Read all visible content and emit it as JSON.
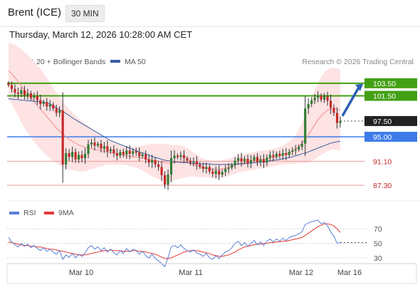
{
  "header": {
    "instrument": "Brent (ICE)",
    "timeframe": "30 MIN"
  },
  "timestamp": "Thursday, March 12, 2026 10:28:00 AM CET",
  "source": "Research © 2026 Trading Central",
  "colors": {
    "bollinger": "#f38a8a",
    "bollinger_fill": "#fde3e3",
    "ma50": "#3a5fa4",
    "candle_up": "#2e7d32",
    "candle_down": "#c62828",
    "resistance": "#43a014",
    "pivot": "#3d7be8",
    "support": "#ef9a9a",
    "current": "#222222",
    "arrow": "#2d5fb3",
    "rsi": "#5b7fd6",
    "rsi_ma": "#e53935"
  },
  "chart_data": [
    {
      "type": "candlestick",
      "legend": [
        {
          "label": "MA 20 + Bollinger Bands",
          "color": "#f38a8a"
        },
        {
          "label": "MA 50",
          "color": "#3a5fa4"
        }
      ],
      "x_ticks": [
        "Mar 10",
        "Mar 11",
        "Mar 12",
        "Mar 16"
      ],
      "ylim": [
        84.7,
        108.8
      ],
      "levels": [
        {
          "value": 103.5,
          "label": "103.50",
          "kind": "resistance"
        },
        {
          "value": 101.5,
          "label": "101.50",
          "kind": "resistance"
        },
        {
          "value": 97.5,
          "label": "97.50",
          "kind": "current"
        },
        {
          "value": 95.0,
          "label": "95.00",
          "kind": "pivot"
        },
        {
          "value": 91.1,
          "label": "91.10",
          "kind": "support"
        },
        {
          "value": 87.3,
          "label": "87.30",
          "kind": "support"
        }
      ],
      "target_arrow": {
        "from": 98.3,
        "to": 103.4
      },
      "close": [
        103.2,
        102.6,
        102.0,
        101.8,
        102.4,
        101.6,
        101.9,
        101.2,
        101.5,
        100.8,
        100.2,
        100.5,
        99.8,
        100.1,
        99.5,
        98.8,
        99.2,
        90.6,
        92.4,
        91.8,
        92.6,
        91.4,
        92.1,
        91.6,
        92.3,
        93.8,
        94.1,
        93.6,
        93.9,
        93.1,
        93.5,
        92.7,
        93.0,
        92.4,
        92.0,
        92.6,
        92.2,
        92.8,
        92.3,
        92.7,
        92.5,
        91.9,
        92.2,
        91.4,
        90.9,
        91.3,
        90.6,
        90.2,
        88.9,
        87.4,
        89.0,
        91.6,
        92.0,
        91.8,
        92.1,
        91.6,
        91.2,
        90.9,
        91.1,
        90.6,
        90.3,
        89.9,
        90.2,
        89.5,
        89.1,
        89.6,
        89.0,
        89.4,
        89.9,
        90.1,
        90.5,
        91.2,
        91.6,
        91.1,
        91.5,
        90.8,
        91.3,
        91.8,
        91.0,
        91.4,
        90.9,
        91.7,
        92.1,
        91.8,
        92.3,
        92.0,
        92.4,
        92.1,
        92.6,
        92.8,
        93.0,
        93.4,
        93.9,
        99.5,
        100.2,
        100.8,
        101.2,
        101.5,
        100.9,
        101.4,
        100.7,
        99.6,
        98.8,
        97.2,
        97.5
      ],
      "ma20": [
        105.5,
        105.0,
        104.4,
        103.8,
        103.1,
        102.4,
        101.8,
        101.2,
        100.6,
        100.0,
        99.4,
        98.8,
        98.2,
        97.6,
        97.0,
        96.4,
        95.9,
        95.4,
        95.0,
        94.6,
        94.3,
        94.0,
        93.7,
        93.5,
        93.3,
        93.2,
        93.1,
        93.0,
        92.9,
        92.8,
        92.7,
        92.6,
        92.5,
        92.4,
        92.3,
        92.2,
        92.1,
        92.0,
        91.9,
        91.8,
        91.8,
        91.7,
        91.6,
        91.5,
        91.4,
        91.3,
        91.2,
        91.1,
        91.0,
        90.9,
        90.8,
        90.8,
        90.9,
        91.0,
        91.0,
        91.0,
        90.9,
        90.8,
        90.6,
        90.4,
        90.2,
        90.1,
        90.0,
        89.9,
        89.8,
        89.8,
        89.8,
        89.9,
        90.0,
        90.1,
        90.3,
        90.5,
        90.7,
        90.8,
        90.9,
        91.0,
        91.1,
        91.2,
        91.3,
        91.4,
        91.4,
        91.5,
        91.6,
        91.7,
        91.8,
        92.0,
        92.1,
        92.3,
        92.5,
        92.7,
        93.0,
        93.5,
        94.0,
        94.6,
        95.3,
        96.1,
        96.9,
        97.7,
        98.3,
        98.8,
        99.2,
        99.4,
        99.5,
        99.4,
        99.2
      ],
      "bb_half_width": [
        4.5,
        4.8,
        5.2,
        5.5,
        5.8,
        6.0,
        6.2,
        6.3,
        6.4,
        6.4,
        6.4,
        6.3,
        6.2,
        6.0,
        5.8,
        5.6,
        5.4,
        5.2,
        5.0,
        4.8,
        4.6,
        4.4,
        4.2,
        4.0,
        3.8,
        3.5,
        3.2,
        3.0,
        2.7,
        2.5,
        2.2,
        2.0,
        1.9,
        1.8,
        1.7,
        1.6,
        1.5,
        1.5,
        1.5,
        1.6,
        1.7,
        1.8,
        2.0,
        2.2,
        2.4,
        2.6,
        2.7,
        2.8,
        2.9,
        3.0,
        3.0,
        2.9,
        2.8,
        2.7,
        2.6,
        2.5,
        2.3,
        2.1,
        1.9,
        1.8,
        1.6,
        1.5,
        1.4,
        1.4,
        1.4,
        1.4,
        1.4,
        1.4,
        1.4,
        1.4,
        1.4,
        1.4,
        1.4,
        1.4,
        1.4,
        1.4,
        1.4,
        1.4,
        1.4,
        1.4,
        1.4,
        1.4,
        1.4,
        1.4,
        1.4,
        1.4,
        1.5,
        1.6,
        1.8,
        2.0,
        2.3,
        2.7,
        3.2,
        3.8,
        4.4,
        5.0,
        5.5,
        5.9,
        6.2,
        6.4,
        6.5,
        6.5,
        6.5,
        6.5,
        6.4
      ],
      "ma50": [
        101.0,
        101.0,
        100.9,
        100.9,
        100.8,
        100.8,
        100.7,
        100.7,
        100.6,
        100.6,
        100.6,
        100.5,
        100.4,
        100.2,
        99.9,
        99.6,
        99.3,
        99.0,
        98.7,
        98.4,
        98.0,
        97.7,
        97.4,
        97.1,
        96.8,
        96.5,
        96.2,
        95.9,
        95.6,
        95.3,
        95.0,
        94.7,
        94.4,
        94.2,
        94.0,
        93.8,
        93.6,
        93.4,
        93.2,
        93.0,
        92.8,
        92.6,
        92.4,
        92.3,
        92.1,
        91.9,
        91.7,
        91.6,
        91.4,
        91.3,
        91.2,
        91.1,
        91.0,
        91.0,
        90.9,
        90.9,
        90.9,
        90.8,
        90.8,
        90.8,
        90.7,
        90.7,
        90.7,
        90.7,
        90.6,
        90.6,
        90.6,
        90.6,
        90.6,
        90.6,
        90.6,
        90.6,
        90.7,
        90.7,
        90.7,
        90.8,
        90.8,
        90.9,
        90.9,
        91.0,
        91.0,
        91.1,
        91.2,
        91.3,
        91.3,
        91.4,
        91.5,
        91.6,
        91.7,
        91.8,
        92.0,
        92.1,
        92.3,
        92.4,
        92.6,
        92.8,
        93.0,
        93.2,
        93.4,
        93.6,
        93.8,
        94.0,
        94.1,
        94.2,
        94.3
      ]
    },
    {
      "type": "line",
      "legend": [
        {
          "label": "RSI",
          "color": "#5b7fd6"
        },
        {
          "label": "9MA",
          "color": "#e53935"
        }
      ],
      "ylim": [
        22,
        85
      ],
      "y_ticks": [
        70,
        50,
        30
      ],
      "rsi": [
        58,
        52,
        48,
        45,
        50,
        46,
        49,
        44,
        47,
        43,
        40,
        44,
        39,
        42,
        38,
        35,
        40,
        28,
        34,
        31,
        36,
        30,
        35,
        32,
        37,
        44,
        47,
        42,
        45,
        40,
        44,
        38,
        42,
        37,
        34,
        40,
        36,
        43,
        38,
        42,
        40,
        35,
        39,
        33,
        30,
        35,
        29,
        26,
        22,
        18,
        30,
        45,
        47,
        44,
        48,
        43,
        40,
        38,
        41,
        37,
        35,
        32,
        36,
        30,
        28,
        33,
        29,
        34,
        38,
        40,
        44,
        50,
        53,
        47,
        51,
        46,
        50,
        54,
        48,
        52,
        47,
        53,
        56,
        52,
        56,
        53,
        57,
        54,
        58,
        60,
        61,
        63,
        66,
        76,
        78,
        80,
        81,
        82,
        77,
        79,
        74,
        66,
        60,
        50,
        51
      ],
      "ma": [
        52,
        51,
        50,
        49,
        48,
        47,
        47,
        46,
        46,
        45,
        45,
        44,
        43,
        42,
        42,
        41,
        40,
        39,
        38,
        37,
        36,
        35,
        34,
        34,
        34,
        35,
        36,
        37,
        38,
        39,
        40,
        40,
        41,
        40,
        40,
        40,
        39,
        39,
        39,
        40,
        40,
        39,
        39,
        38,
        37,
        36,
        35,
        33,
        31,
        29,
        29,
        30,
        32,
        34,
        36,
        38,
        39,
        40,
        40,
        40,
        39,
        38,
        37,
        36,
        34,
        33,
        32,
        32,
        33,
        34,
        36,
        38,
        41,
        43,
        45,
        46,
        47,
        48,
        49,
        49,
        50,
        50,
        51,
        51,
        52,
        52,
        53,
        53,
        54,
        55,
        56,
        57,
        58,
        61,
        64,
        67,
        70,
        73,
        75,
        77,
        77,
        76,
        74,
        70,
        65
      ]
    }
  ]
}
